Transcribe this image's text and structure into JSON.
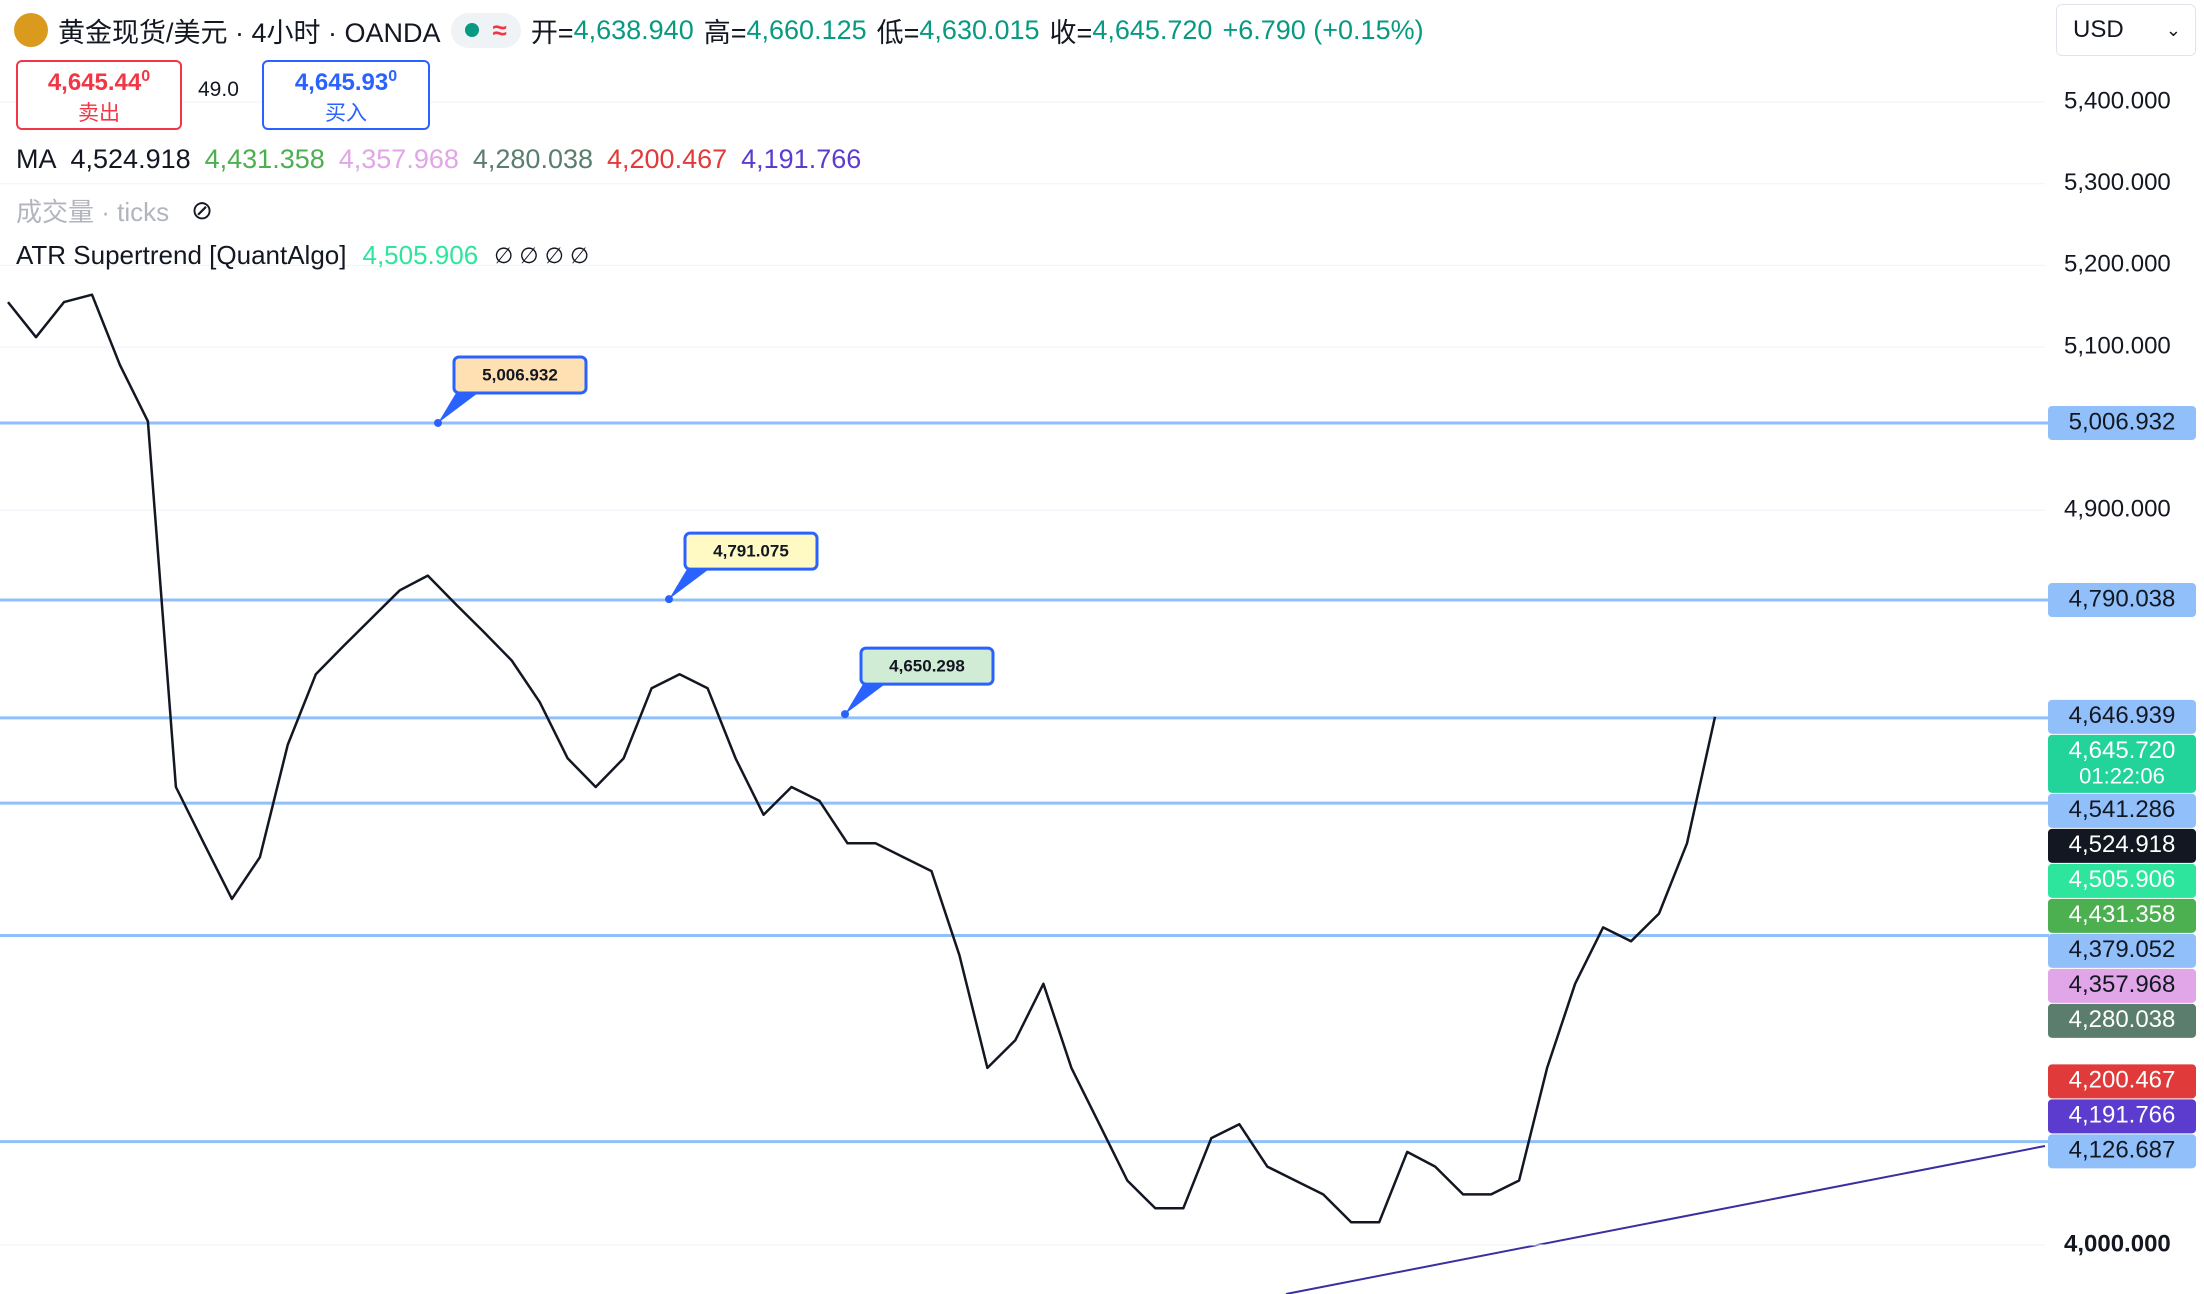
{
  "header": {
    "symbol": "黄金现货/美元 · 4小时 · OANDA",
    "ohlc": [
      {
        "label": "开=",
        "value": "4,638.940"
      },
      {
        "label": "高=",
        "value": "4,660.125"
      },
      {
        "label": "低=",
        "value": "4,630.015"
      },
      {
        "label": "收=",
        "value": "4,645.720"
      }
    ],
    "change": "+6.790 (+0.15%)",
    "currency": "USD"
  },
  "trade": {
    "sell": {
      "price": "4,645.44",
      "sup": "0",
      "label": "卖出"
    },
    "spread": "49.0",
    "buy": {
      "price": "4,645.93",
      "sup": "0",
      "label": "买入"
    }
  },
  "indicators": {
    "ma": {
      "name": "MA",
      "values": [
        {
          "text": "4,524.918",
          "color": "#131722"
        },
        {
          "text": "4,431.358",
          "color": "#4caf50"
        },
        {
          "text": "4,357.968",
          "color": "#e1a6e8"
        },
        {
          "text": "4,280.038",
          "color": "#5b7d6e"
        },
        {
          "text": "4,200.467",
          "color": "#e03a3a"
        },
        {
          "text": "4,191.766",
          "color": "#5b3ccf"
        }
      ]
    },
    "volume": "成交量 · ticks",
    "atr": {
      "name": "ATR Supertrend [QuantAlgo]",
      "value": "4,505.906",
      "extra": "∅ ∅ ∅ ∅"
    }
  },
  "chart_data": {
    "type": "line",
    "ylim": [
      3940,
      5525
    ],
    "grid": true,
    "yticks": [
      {
        "value": 5400,
        "label": "5,400.000"
      },
      {
        "value": 5300,
        "label": "5,300.000"
      },
      {
        "value": 5200,
        "label": "5,200.000"
      },
      {
        "value": 5100,
        "label": "5,100.000"
      },
      {
        "value": 4900,
        "label": "4,900.000"
      },
      {
        "value": 4000,
        "label": "4,000.000"
      }
    ],
    "series": [
      {
        "color": "#131722",
        "values": [
          5155,
          5112,
          5155,
          5164,
          5078,
          5009,
          4561,
          4492,
          4424,
          4475,
          4613,
          4699,
          4734,
          4768,
          4802,
          4820,
          4785,
          4751,
          4716,
          4665,
          4596,
          4561,
          4596,
          4682,
          4699,
          4682,
          4596,
          4527,
          4561,
          4544,
          4492,
          4492,
          4475,
          4458,
          4355,
          4217,
          4251,
          4320,
          4217,
          4148,
          4079,
          4045,
          4045,
          4131,
          4148,
          4096,
          4079,
          4062,
          4028,
          4028,
          4114,
          4096,
          4062,
          4062,
          4079,
          4217,
          4320,
          4389,
          4372,
          4406,
          4492,
          4647
        ]
      }
    ],
    "price_badges": [
      {
        "value": 5006.932,
        "label": "5,006.932",
        "color": "#90bff9",
        "text_color": "#131722",
        "line": true
      },
      {
        "value": 4790.038,
        "label": "4,790.038",
        "color": "#90bff9",
        "text_color": "#131722",
        "line": true
      },
      {
        "value": 4646.939,
        "label": "4,646.939",
        "color": "#90bff9",
        "text_color": "#131722",
        "line": false
      },
      {
        "value": 4645.72,
        "label": "4,645.720",
        "sublabel": "01:22:06",
        "color": "#22d39a",
        "text_color": "#ffffff",
        "line": true
      },
      {
        "value": 4541.286,
        "label": "4,541.286",
        "color": "#90bff9",
        "text_color": "#131722",
        "line": true
      },
      {
        "value": 4524.918,
        "label": "4,524.918",
        "color": "#131722",
        "text_color": "#ffffff",
        "line": false
      },
      {
        "value": 4505.906,
        "label": "4,505.906",
        "color": "#2ee59d",
        "text_color": "#ffffff",
        "line": false
      },
      {
        "value": 4431.358,
        "label": "4,431.358",
        "color": "#4caf50",
        "text_color": "#ffffff",
        "line": false
      },
      {
        "value": 4379.052,
        "label": "4,379.052",
        "color": "#90bff9",
        "text_color": "#131722",
        "line": true
      },
      {
        "value": 4357.968,
        "label": "4,357.968",
        "color": "#e1a6e8",
        "text_color": "#131722",
        "line": false
      },
      {
        "value": 4280.038,
        "label": "4,280.038",
        "color": "#5b7d6e",
        "text_color": "#ffffff",
        "line": false
      },
      {
        "value": 4200.467,
        "label": "4,200.467",
        "color": "#e03a3a",
        "text_color": "#ffffff",
        "line": false
      },
      {
        "value": 4191.766,
        "label": "4,191.766",
        "color": "#5b3ccf",
        "text_color": "#ffffff",
        "line": false
      },
      {
        "value": 4126.687,
        "label": "4,126.687",
        "color": "#90bff9",
        "text_color": "#131722",
        "line": true
      }
    ],
    "callouts": [
      {
        "value": 5006.932,
        "label": "5,006.932",
        "color": "#ffe0b2"
      },
      {
        "value": 4791.075,
        "label": "4,791.075",
        "color": "#fff9c4"
      },
      {
        "value": 4650.298,
        "label": "4,650.298",
        "color": "#d0ecd5"
      }
    ]
  }
}
